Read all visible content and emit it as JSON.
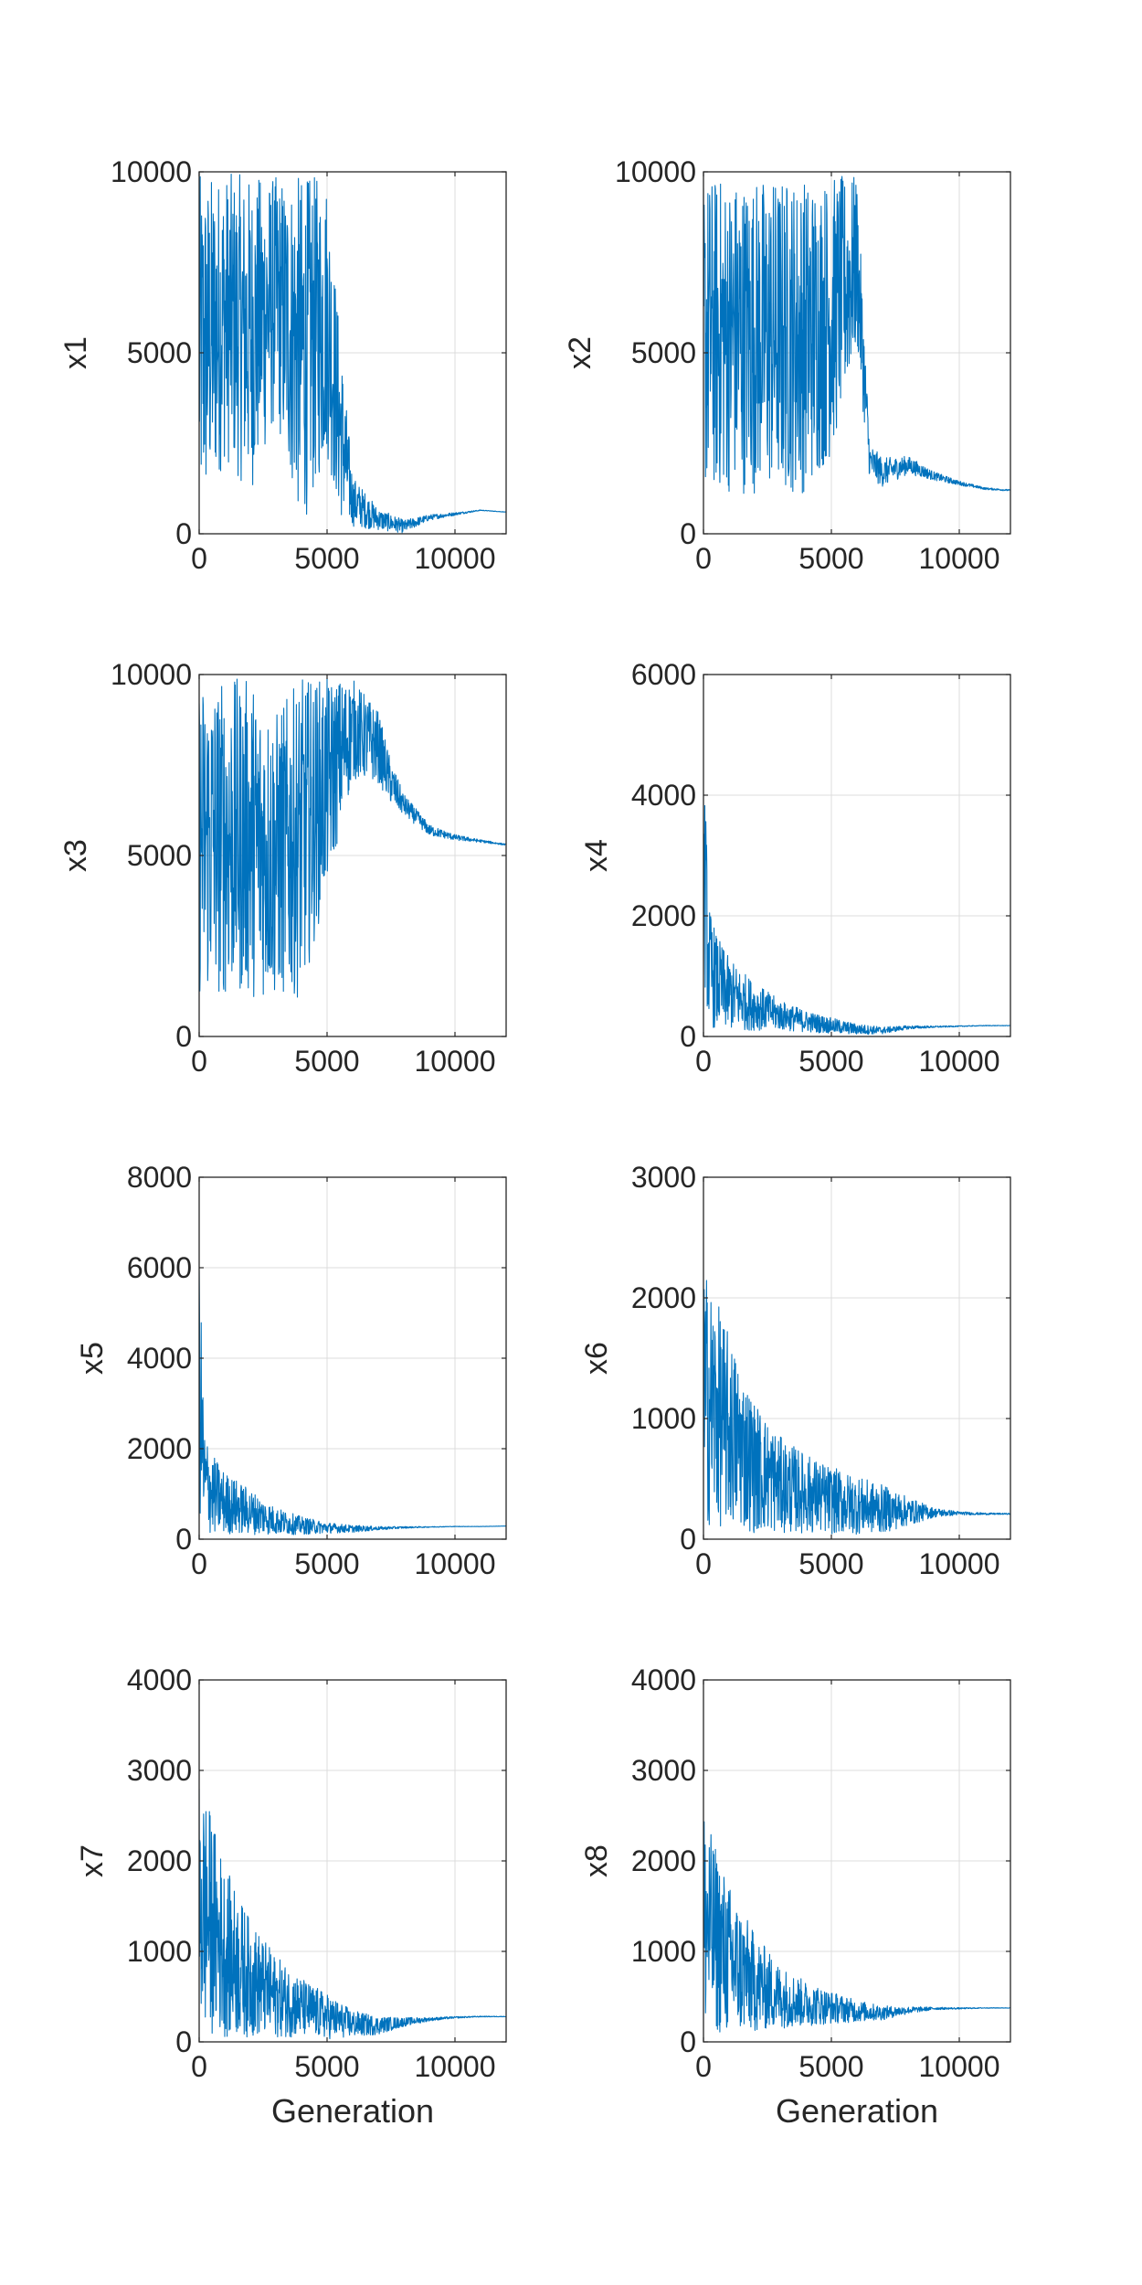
{
  "figure": {
    "colors": {
      "line": "#0072BD",
      "axis": "#262626",
      "grid": "#dcdcdc",
      "background": "#ffffff"
    }
  },
  "chart_data": [
    {
      "id": "x1",
      "type": "line",
      "ylabel": "x1",
      "xlabel": "",
      "xlim": [
        0,
        12000
      ],
      "ylim": [
        0,
        10000
      ],
      "grid": true,
      "xticks": [
        0,
        5000,
        10000
      ],
      "yticks": [
        0,
        5000,
        10000
      ],
      "x": [
        0,
        1000,
        2000,
        3000,
        4000,
        5000,
        5500,
        6000,
        7000,
        8000,
        9000,
        10000,
        11000,
        12000
      ],
      "y": [
        5000,
        6000,
        5500,
        6500,
        5000,
        6000,
        3000,
        900,
        400,
        200,
        450,
        550,
        650,
        600
      ],
      "noise": [
        4900,
        4000,
        4400,
        3400,
        4900,
        3900,
        2600,
        700,
        300,
        180,
        80,
        40,
        10,
        5
      ]
    },
    {
      "id": "x2",
      "type": "line",
      "ylabel": "x2",
      "xlabel": "",
      "xlim": [
        0,
        12000
      ],
      "ylim": [
        0,
        10000
      ],
      "grid": true,
      "xticks": [
        0,
        5000,
        10000
      ],
      "yticks": [
        0,
        5000,
        10000
      ],
      "x": [
        0,
        1000,
        2000,
        3000,
        4000,
        5000,
        6000,
        6500,
        7000,
        8000,
        9000,
        10000,
        11000,
        12000
      ],
      "y": [
        5500,
        5500,
        5500,
        5500,
        5500,
        6000,
        7500,
        2000,
        1700,
        1900,
        1600,
        1400,
        1250,
        1200
      ],
      "noise": [
        4400,
        4400,
        4400,
        4400,
        4400,
        3900,
        2400,
        500,
        400,
        250,
        120,
        60,
        30,
        20
      ]
    },
    {
      "id": "x3",
      "type": "line",
      "ylabel": "x3",
      "xlabel": "",
      "xlim": [
        0,
        12000
      ],
      "ylim": [
        0,
        10000
      ],
      "grid": true,
      "xticks": [
        0,
        5000,
        10000
      ],
      "yticks": [
        0,
        5000,
        10000
      ],
      "x": [
        0,
        1000,
        2000,
        3000,
        4000,
        5000,
        6000,
        7000,
        7500,
        8000,
        9000,
        10000,
        11000,
        12000
      ],
      "y": [
        5500,
        5500,
        5500,
        5000,
        5500,
        7000,
        8500,
        8000,
        7000,
        6400,
        5700,
        5500,
        5400,
        5300
      ],
      "noise": [
        4400,
        4400,
        4400,
        4000,
        4400,
        2900,
        1400,
        1000,
        600,
        300,
        150,
        80,
        40,
        20
      ]
    },
    {
      "id": "x4",
      "type": "line",
      "ylabel": "x4",
      "xlabel": "",
      "xlim": [
        0,
        12000
      ],
      "ylim": [
        0,
        6000
      ],
      "grid": true,
      "xticks": [
        0,
        5000,
        10000
      ],
      "yticks": [
        0,
        2000,
        4000,
        6000
      ],
      "x": [
        0,
        200,
        500,
        1000,
        2000,
        3000,
        4000,
        5000,
        6000,
        7000,
        8000,
        9000,
        10000,
        11000,
        12000
      ],
      "y": [
        3000,
        1200,
        900,
        700,
        500,
        350,
        250,
        180,
        120,
        100,
        150,
        160,
        170,
        180,
        180
      ],
      "noise": [
        2000,
        1000,
        800,
        600,
        400,
        250,
        180,
        130,
        90,
        60,
        30,
        15,
        8,
        5,
        3
      ]
    },
    {
      "id": "x5",
      "type": "line",
      "ylabel": "x5",
      "xlabel": "",
      "xlim": [
        0,
        12000
      ],
      "ylim": [
        0,
        8000
      ],
      "grid": true,
      "xticks": [
        0,
        5000,
        10000
      ],
      "yticks": [
        0,
        2000,
        4000,
        6000,
        8000
      ],
      "x": [
        0,
        200,
        500,
        1000,
        2000,
        3000,
        4000,
        5000,
        6000,
        7000,
        8000,
        9000,
        10000,
        11000,
        12000
      ],
      "y": [
        3500,
        1300,
        1000,
        800,
        600,
        400,
        300,
        250,
        230,
        240,
        260,
        270,
        280,
        280,
        290
      ],
      "noise": [
        3000,
        1200,
        900,
        700,
        500,
        300,
        200,
        120,
        80,
        40,
        20,
        10,
        5,
        3,
        2
      ]
    },
    {
      "id": "x6",
      "type": "line",
      "ylabel": "x6",
      "xlabel": "",
      "xlim": [
        0,
        12000
      ],
      "ylim": [
        0,
        3000
      ],
      "grid": true,
      "xticks": [
        0,
        5000,
        10000
      ],
      "yticks": [
        0,
        1000,
        2000,
        3000
      ],
      "x": [
        0,
        300,
        1000,
        2000,
        3000,
        4000,
        5000,
        6000,
        7000,
        8000,
        9000,
        10000,
        11000,
        12000
      ],
      "y": [
        1200,
        1100,
        900,
        600,
        450,
        380,
        320,
        280,
        250,
        230,
        220,
        215,
        210,
        210
      ],
      "noise": [
        1100,
        1000,
        800,
        550,
        400,
        330,
        280,
        240,
        200,
        120,
        40,
        15,
        8,
        5
      ]
    },
    {
      "id": "x7",
      "type": "line",
      "ylabel": "x7",
      "xlabel": "Generation",
      "xlim": [
        0,
        12000
      ],
      "ylim": [
        0,
        4000
      ],
      "grid": true,
      "xticks": [
        0,
        5000,
        10000
      ],
      "yticks": [
        0,
        1000,
        2000,
        3000,
        4000
      ],
      "x": [
        0,
        300,
        1000,
        2000,
        3000,
        4000,
        5000,
        6000,
        7000,
        8000,
        9000,
        10000,
        11000,
        12000
      ],
      "y": [
        1500,
        1400,
        1000,
        700,
        500,
        380,
        280,
        200,
        180,
        220,
        250,
        270,
        280,
        280
      ],
      "noise": [
        1400,
        1300,
        950,
        650,
        450,
        330,
        250,
        150,
        100,
        50,
        20,
        10,
        5,
        3
      ]
    },
    {
      "id": "x8",
      "type": "line",
      "ylabel": "x8",
      "xlabel": "Generation",
      "xlim": [
        0,
        12000
      ],
      "ylim": [
        0,
        4000
      ],
      "grid": true,
      "xticks": [
        0,
        5000,
        10000
      ],
      "yticks": [
        0,
        1000,
        2000,
        3000,
        4000
      ],
      "x": [
        0,
        300,
        1000,
        2000,
        3000,
        4000,
        5000,
        6000,
        7000,
        8000,
        9000,
        10000,
        11000,
        12000
      ],
      "y": [
        1400,
        1200,
        900,
        650,
        500,
        420,
        380,
        340,
        320,
        350,
        370,
        370,
        375,
        375
      ],
      "noise": [
        1300,
        1100,
        850,
        550,
        350,
        250,
        180,
        120,
        80,
        40,
        15,
        8,
        4,
        2
      ]
    }
  ]
}
